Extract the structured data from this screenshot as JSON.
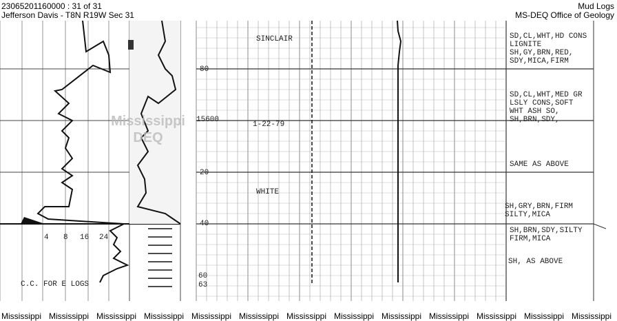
{
  "header": {
    "left": [
      "23065201160000 : 31 of 31",
      "Jefferson Davis - T8N R19W Sec 31"
    ],
    "right": [
      "Mud Logs",
      "MS-DEQ Office of Geology"
    ]
  },
  "log": {
    "annotations": [
      "SINCLAIR",
      "1-22-79",
      "WHITE"
    ],
    "depths": [
      "80",
      "15600",
      "20",
      "40",
      "60",
      "63"
    ],
    "scale": [
      "4",
      "8",
      "16",
      "24"
    ],
    "note": "C.C. FOR E LOGS",
    "watermark": [
      "Mississippi",
      "DEQ"
    ],
    "descriptions": [
      [
        "SD,CL,WHT,HD CONS",
        "LIGNITE",
        "SH,GY,BRN,RED,",
        "SDY,MICA,FIRM"
      ],
      [
        "SD,CL,WHT,MED GR",
        "LSLY CONS,SOFT",
        "WHT ASH SO,",
        "SH,BRN,SDY,"
      ],
      [
        "SAME AS ABOVE"
      ],
      [
        "SH,GRY,BRN,FIRM",
        "SILTY,MICA"
      ],
      [
        "SH,BRN,SDY,SILTY",
        "FIRM,MICA"
      ],
      [
        "SH, AS ABOVE"
      ]
    ]
  },
  "footer": [
    "Mississippi",
    "Mississippi",
    "Mississippi",
    "Mississippi",
    "Mississippi",
    "Mississippi",
    "Mississippi",
    "Mississippi",
    "Mississippi",
    "Mississippi",
    "Mississippi",
    "Mississippi",
    "Mississippi"
  ]
}
